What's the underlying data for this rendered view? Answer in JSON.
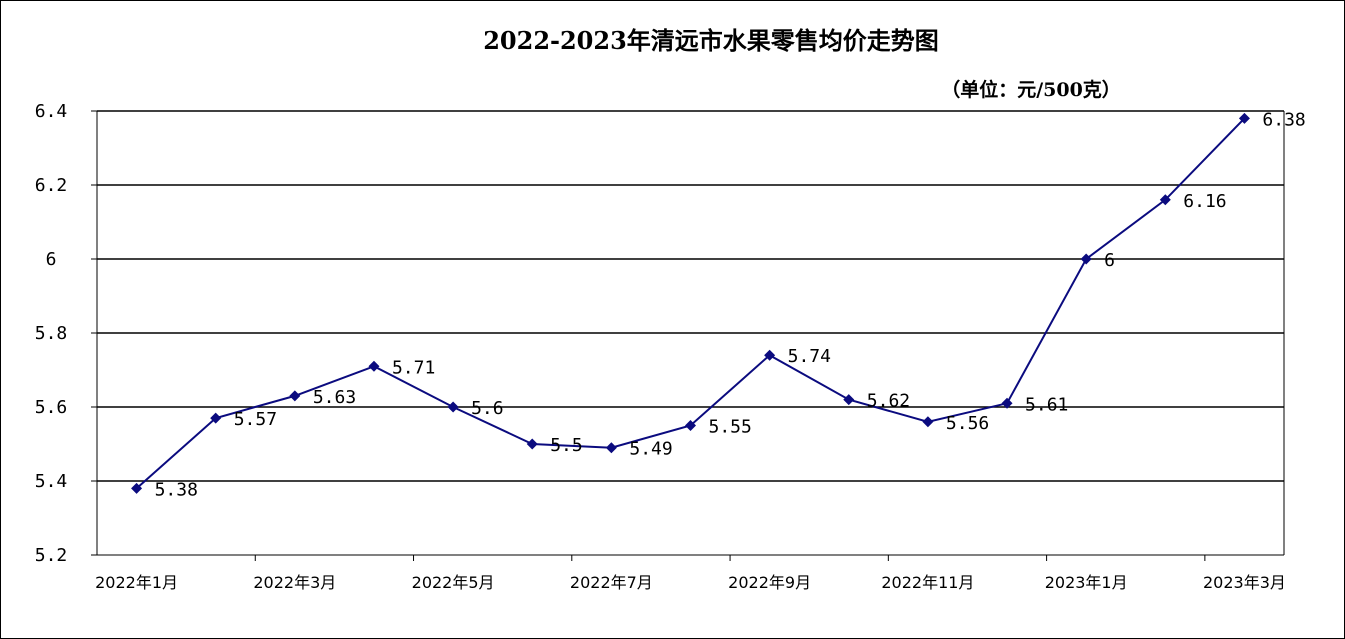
{
  "chart_data": {
    "type": "line",
    "title": "2022-2023年清远市水果零售均价走势图",
    "unit_label": "（单位：元/500克）",
    "x": [
      "2022年1月",
      "2022年2月",
      "2022年3月",
      "2022年4月",
      "2022年5月",
      "2022年6月",
      "2022年7月",
      "2022年8月",
      "2022年9月",
      "2022年10月",
      "2022年11月",
      "2022年12月",
      "2023年1月",
      "2023年2月",
      "2023年3月"
    ],
    "x_tick_labels": [
      "2022年1月",
      "2022年3月",
      "2022年5月",
      "2022年7月",
      "2022年9月",
      "2022年11月",
      "2023年1月",
      "2023年3月"
    ],
    "values": [
      5.38,
      5.57,
      5.63,
      5.71,
      5.6,
      5.5,
      5.49,
      5.55,
      5.74,
      5.62,
      5.56,
      5.61,
      6.0,
      6.16,
      6.38
    ],
    "data_labels": [
      "5.38",
      "5.57",
      "5.63",
      "5.71",
      "5.6",
      "5.5",
      "5.49",
      "5.55",
      "5.74",
      "5.62",
      "5.56",
      "5.61",
      "6",
      "6.16",
      "6.38"
    ],
    "y_tick_labels": [
      "5.2",
      "5.4",
      "5.6",
      "5.8",
      "6",
      "6.2",
      "6.4"
    ],
    "ylim": [
      5.2,
      6.4
    ],
    "grid": true,
    "line_color": "#0b0b7f",
    "marker": "diamond"
  }
}
